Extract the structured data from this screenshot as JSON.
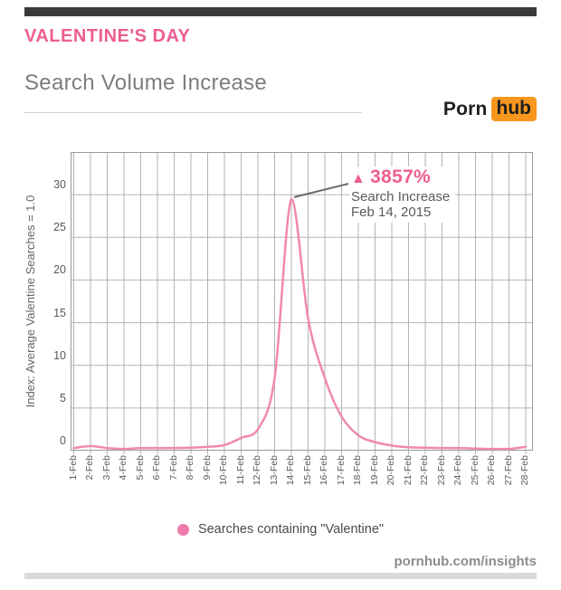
{
  "header": {
    "eyebrow": "VALENTINE'S DAY",
    "title": "Search Volume Increase"
  },
  "logo": {
    "part1": "Porn",
    "part2": "hub"
  },
  "annotation": {
    "arrow": "▲",
    "value": "3857%",
    "line1": "Search Increase",
    "line2": "Feb 14, 2015"
  },
  "legend": {
    "label": "Searches containing \"Valentine\""
  },
  "footer": {
    "site": "pornhub.com/insights"
  },
  "colors": {
    "pink_accent": "#ee5d92",
    "pink_line": "#f089b0",
    "legend_dot": "#ee7aab",
    "grid": "#b3b3b3",
    "frame": "#999999",
    "callout": "#6a6a6a",
    "orange_logo": "#f7971d",
    "dark_bar": "#3a3a3a",
    "light_bar": "#dadada"
  },
  "chart_data": {
    "type": "line",
    "title": "Search Volume Increase",
    "xlabel": "",
    "ylabel": "Index: Average Valentine Searches = 1.0",
    "ylim": [
      0,
      35
    ],
    "yticks": [
      0,
      5,
      10,
      15,
      20,
      25,
      30
    ],
    "grid": true,
    "legend_position": "bottom",
    "categories": [
      "1-Feb",
      "2-Feb",
      "3-Feb",
      "4-Feb",
      "5-Feb",
      "6-Feb",
      "7-Feb",
      "8-Feb",
      "9-Feb",
      "10-Feb",
      "11-Feb",
      "12-Feb",
      "13-Feb",
      "14-Feb",
      "15-Feb",
      "16-Feb",
      "17-Feb",
      "18-Feb",
      "19-Feb",
      "20-Feb",
      "21-Feb",
      "22-Feb",
      "23-Feb",
      "24-Feb",
      "25-Feb",
      "26-Feb",
      "27-Feb",
      "28-Feb"
    ],
    "series": [
      {
        "name": "Searches containing \"Valentine\"",
        "values": [
          0.3,
          0.55,
          0.3,
          0.2,
          0.3,
          0.3,
          0.3,
          0.35,
          0.45,
          0.65,
          1.5,
          2.5,
          8.5,
          29.5,
          15.5,
          8.5,
          4.0,
          1.8,
          1.0,
          0.6,
          0.4,
          0.35,
          0.3,
          0.3,
          0.25,
          0.2,
          0.2,
          0.45
        ]
      }
    ],
    "annotations": [
      {
        "x": "14-Feb",
        "y": 29.5,
        "text": "▲ 3857% Search Increase Feb 14, 2015"
      }
    ]
  }
}
